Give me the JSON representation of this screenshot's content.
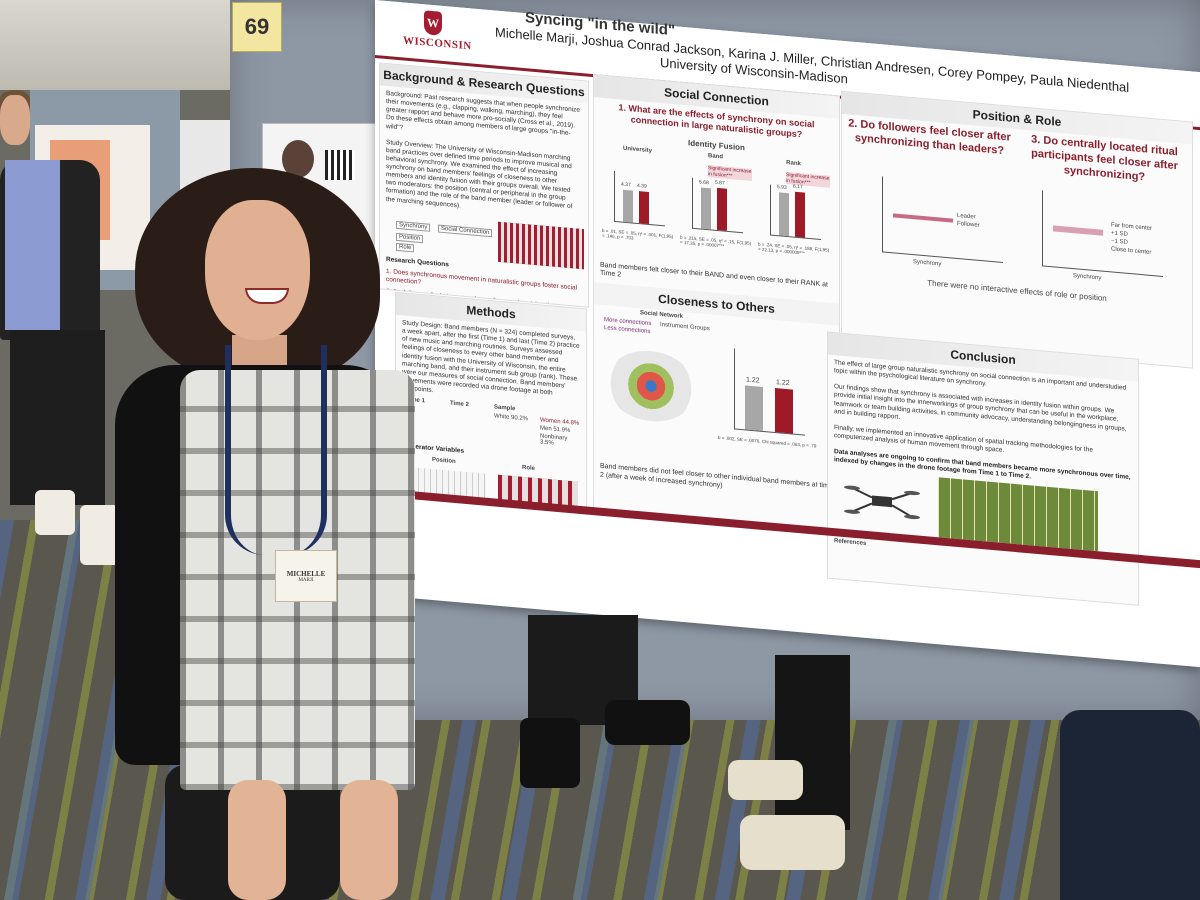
{
  "booth_number": "69",
  "poster": {
    "university_logo_text": "WISCONSIN",
    "university_logo_sub": "UNIVERSITY OF WISCONSIN–MADISON",
    "title_fragment": "Syncing \"in the wild\"",
    "authors": "Michelle Marji, Joshua Conrad Jackson, Karina J. Miller, Christian Andresen, Corey Pompey, Paula Niedenthal",
    "affiliation": "University of Wisconsin-Madison",
    "background": {
      "heading": "Background & Research Questions",
      "text": "Background: Past research suggests that when people synchronize their movements (e.g., clapping, walking, marching), they feel greater rapport and behave more pro-socially (Cross et al., 2019). Do these effects obtain among members of large groups \"in-the-wild\"?",
      "overview": "Study Overview: The University of Wisconsin-Madison marching band practices over defined time periods to improve musical and behavioral synchrony. We examined the effect of increasing synchrony on band members' feelings of closeness to other members and identity fusion with their groups overall. We tested two moderators: the position (central or peripheral in the group formation) and the role of the band member (leader or follower of the marching sequences).",
      "diagram_labels": [
        "Synchrony",
        "Social Connection",
        "Position",
        "Centrally located feel closer",
        "Role",
        "Followers feel closer than leaders"
      ],
      "rq_heading": "Research Questions",
      "rq_items": [
        "1. Does synchronous movement in naturalistic groups foster social connection?",
        "2. Do followers feel closer to others after synchronizing than leaders?",
        "3. Do centrally located band members feel closer to others after synchronizing?"
      ]
    },
    "methods": {
      "heading": "Methods",
      "text": "Study Design: Band members (N = 324) completed surveys, a week apart, after the first (Time 1) and last (Time 2) practice of new music and marching routines. Surveys assessed feelings of closeness to every other band member and identity fusion with the University of Wisconsin, the entire marching band, and their instrument sub group (rank). These were our measures of social connection. Band members' movements were recorded via drone footage at both timepoints.",
      "time1": "Time 1",
      "time1_sub": "(Begin learning)",
      "time2": "Time 2",
      "time2_sub": "(End learning)",
      "sample_heading": "Sample",
      "sample": [
        "White 90.2%",
        "Multiracial 3.2%",
        "Asian 2.9%",
        "Black, Middle Eastern, South Asian, Native American, Latinx, Puerto Rican 4.4%"
      ],
      "gender": [
        "Women 44.8%",
        "Men 51.9%",
        "Nonbinary 3.5%"
      ],
      "moderators_heading": "Moderator Variables",
      "position_heading": "Position",
      "position_text": "Peripheral/central status were used to quantify band members' distance from center of formation",
      "role_heading": "Role",
      "role_text": "Leaders modeled the form and timing of marching; followers attended to leaders"
    },
    "social_connection": {
      "heading": "Social Connection",
      "question": "1. What are the effects of synchrony on social connection in large naturalistic groups?",
      "sub_heading": "Identity Fusion",
      "groups": [
        "University",
        "Band",
        "Rank"
      ],
      "values": [
        [
          4.37,
          4.39
        ],
        [
          5.68,
          5.87
        ],
        [
          5.93,
          6.17
        ]
      ],
      "annotations": [
        "",
        "Significant increase in fusion***",
        "Significant increase in fusion***"
      ],
      "stats": [
        "b = .01, SE = .05, η² = .001, F(1,95) = .146, p = .703",
        "b = .215, SE = .05, η² = .15, F(1,95) = 17.35, p = .00007***",
        "b = .24, SE = .05, η² = .188, F(1,95) = 22.13, p = .000009***"
      ],
      "xlabel": "Synchrony",
      "ylabel": "Fusion",
      "time_labels": [
        "Time 1 (Low)",
        "Time 2 (High)"
      ],
      "finding": "Band members felt closer to their BAND and even closer to their RANK at Time 2",
      "closeness_heading": "Closeness to Others",
      "network_title": "Social Network",
      "network_legend": [
        "More connections",
        "Less connections",
        "Instrument Groups",
        "Leader"
      ],
      "closeness_values": [
        1.22,
        1.22
      ],
      "closeness_ylabel": "Closeness with Individuals",
      "closeness_stats": "b = .002, SE = .0076, Chi squared = .063, p = .79",
      "closeness_finding": "Band members did not feel closer to other individual band members at time 2 (after a week of increased synchrony)"
    },
    "position_role": {
      "heading": "Position & Role",
      "q2": "2. Do followers feel closer after synchronizing than leaders?",
      "q3": "3. Do centrally located ritual participants feel closer after synchronizing?",
      "legend_role": [
        "Leader",
        "Follower"
      ],
      "legend_position": [
        "Far from center",
        "+1 SD",
        "−1 SD",
        "Close to center"
      ],
      "ylabel": "Closeness with Individuals",
      "xlabel": "Synchrony",
      "time_labels": [
        "Time 1 (Low)",
        "Time 2 (High)"
      ],
      "stats_role": "b = .008, SE = .019, Chi squared = .1642, p = .684",
      "stats_position": "b = -.009, SE = .008, Chi squared = 1.376, p = .241",
      "finding": "There were no interactive effects of role or position"
    },
    "conclusion": {
      "heading": "Conclusion",
      "p1": "The effect of large group naturalistic synchrony on social connection is an important and understudied topic within the psychological literature on synchrony.",
      "p2": "Our findings show that synchrony is associated with increases in identity fusion within groups. We provide initial insight into the innerworkings of group synchrony that can be useful in the workplace, teamwork or team building activities, in community advocacy, understanding belongingness in groups, and in building rapport.",
      "p3": "Finally, we implemented an innovative application of spatial tracking methodologies for the computerized analysis of human movement through space.",
      "p4": "Data analyses are ongoing to confirm that band members became more synchronous over time, indexed by changes in the drone footage from Time 1 to Time 2.",
      "references_heading": "References"
    }
  },
  "badge": {
    "name": "MICHELLE",
    "sub": "MARJI"
  },
  "colors": {
    "uw_red": "#9e1a26",
    "bar_grey": "#a7a7a7",
    "booth_wall": "#8e98a5"
  }
}
